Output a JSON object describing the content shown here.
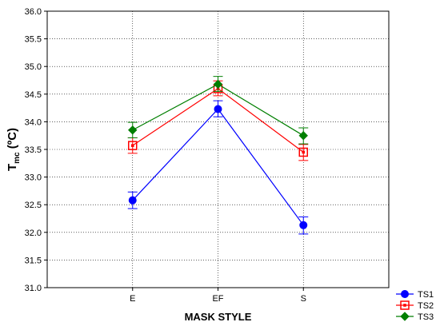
{
  "chart_data": {
    "type": "line",
    "xlabel": "MASK STYLE",
    "ylabel_main": "T",
    "ylabel_sub": "mc",
    "ylabel_unit": " (ºC)",
    "categories": [
      "E",
      "EF",
      "S"
    ],
    "ylim": [
      31.0,
      36.0
    ],
    "yticks": [
      "31.0",
      "31.5",
      "32.0",
      "32.5",
      "33.0",
      "33.5",
      "34.0",
      "34.5",
      "35.0",
      "35.5",
      "36.0"
    ],
    "grid": true,
    "legend_position": "bottom-right",
    "series": [
      {
        "name": "TS1",
        "color": "#0000ff",
        "marker": "circle",
        "values": [
          32.58,
          34.23,
          32.13
        ],
        "err_low": [
          32.43,
          34.09,
          31.97
        ],
        "err_high": [
          32.73,
          34.38,
          32.28
        ]
      },
      {
        "name": "TS2",
        "color": "#ff0000",
        "marker": "square",
        "values": [
          33.57,
          34.6,
          33.45
        ],
        "err_low": [
          33.43,
          34.47,
          33.3
        ],
        "err_high": [
          33.71,
          34.74,
          33.59
        ]
      },
      {
        "name": "TS3",
        "color": "#007f00",
        "marker": "diamond",
        "values": [
          33.85,
          34.68,
          33.75
        ],
        "err_low": [
          33.71,
          34.55,
          33.6
        ],
        "err_high": [
          33.99,
          34.82,
          33.89
        ]
      }
    ]
  }
}
